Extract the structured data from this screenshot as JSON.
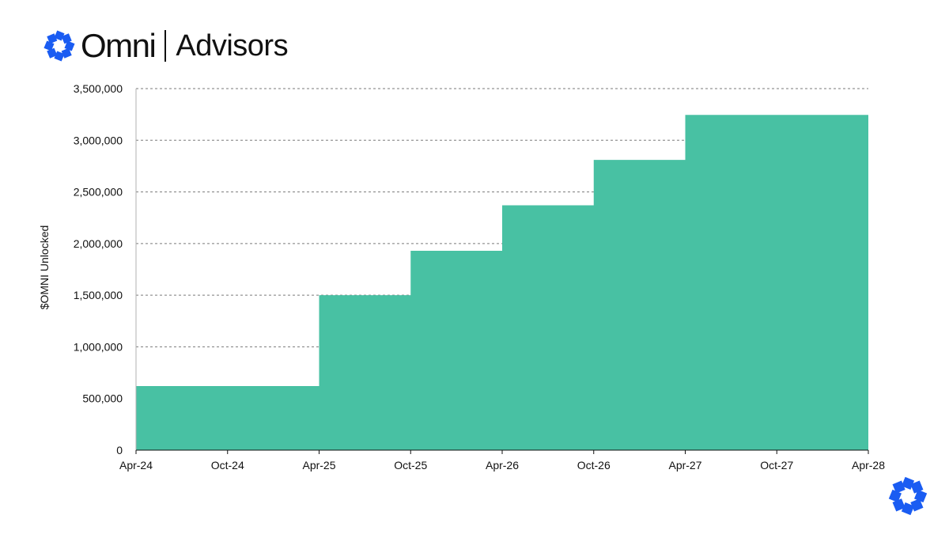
{
  "brand": {
    "name": "Omni",
    "subtitle": "Advisors",
    "accent_color": "#1a5cf2",
    "logo_icon": "omni-logo-icon"
  },
  "chart_data": {
    "type": "area",
    "step": true,
    "title": "",
    "xlabel": "",
    "ylabel": "$OMNI Unlocked",
    "x_tick_labels": [
      "Apr-24",
      "Oct-24",
      "Apr-25",
      "Oct-25",
      "Apr-26",
      "Oct-26",
      "Apr-27",
      "Oct-27",
      "Apr-28"
    ],
    "y_tick_labels": [
      "0",
      "500,000",
      "1,000,000",
      "1,500,000",
      "2,000,000",
      "2,500,000",
      "3,000,000",
      "3,500,000"
    ],
    "ylim": [
      0,
      3500000
    ],
    "xlim": [
      "2024-04",
      "2028-04"
    ],
    "grid": "horizontal dashed",
    "fill_color": "#48c1a3",
    "series": [
      {
        "steps": [
          {
            "from": "2024-04",
            "value": 620000
          },
          {
            "from": "2025-04",
            "value": 1500000
          },
          {
            "from": "2025-10",
            "value": 1930000
          },
          {
            "from": "2026-04",
            "value": 2370000
          },
          {
            "from": "2026-10",
            "value": 2810000
          },
          {
            "from": "2027-04",
            "value": 3245000
          }
        ],
        "until": "2028-04"
      }
    ]
  }
}
